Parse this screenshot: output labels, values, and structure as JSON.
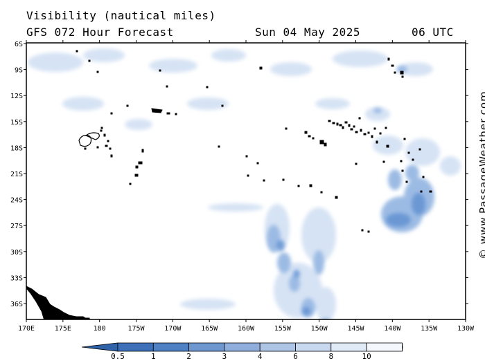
{
  "header": {
    "title": "Visibility (nautical miles)",
    "subtitle": "GFS 072 Hour Forecast",
    "date": "Sun 04 May 2025",
    "time": "06 UTC"
  },
  "credit": "© www.PassageWeather.com",
  "axes": {
    "lat_labels": [
      "6S",
      "9S",
      "12S",
      "15S",
      "18S",
      "21S",
      "24S",
      "27S",
      "30S",
      "33S",
      "36S"
    ],
    "lon_labels": [
      "170E",
      "175E",
      "180",
      "175W",
      "170W",
      "165W",
      "160W",
      "155W",
      "150W",
      "145W",
      "140W",
      "135W",
      "130W"
    ]
  },
  "legend": {
    "labels": [
      "0.5",
      "1",
      "2",
      "3",
      "4",
      "6",
      "8",
      "10"
    ],
    "colors": [
      "#3d70b8",
      "#4f80c3",
      "#6f97cf",
      "#90aedb",
      "#aec5e6",
      "#c8d8ef",
      "#e0eaf6",
      "#f4f8fd"
    ]
  },
  "palette": {
    "haze_dark": "#5f8fd0",
    "haze_mid": "#9cbbe4",
    "haze_light": "#d6e3f4",
    "land": "#000000"
  }
}
